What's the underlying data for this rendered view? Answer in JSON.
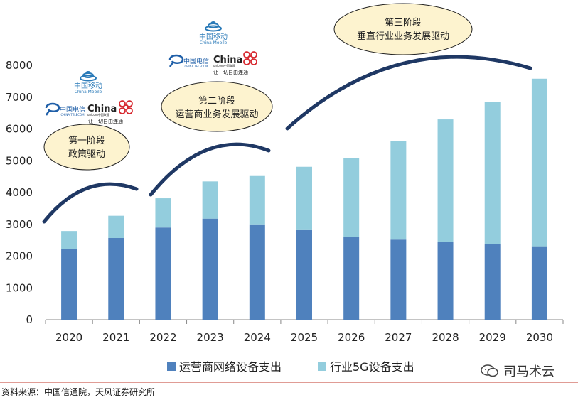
{
  "chart_data": {
    "type": "bar",
    "stacked": true,
    "categories": [
      "2020",
      "2021",
      "2022",
      "2023",
      "2024",
      "2025",
      "2026",
      "2027",
      "2028",
      "2029",
      "2030"
    ],
    "series": [
      {
        "name": "运营商网络设备支出",
        "color": "#4f81bd",
        "values": [
          2230,
          2570,
          2900,
          3180,
          3000,
          2820,
          2610,
          2520,
          2450,
          2380,
          2310
        ]
      },
      {
        "name": "行业5G设备支出",
        "color": "#93cddd",
        "values": [
          560,
          700,
          920,
          1170,
          1520,
          1990,
          2470,
          3100,
          3850,
          4480,
          5270
        ]
      }
    ],
    "ylim": [
      0,
      8000
    ],
    "yticks": [
      0,
      1000,
      2000,
      3000,
      4000,
      5000,
      6000,
      7000,
      8000
    ],
    "grid": false,
    "legend": "bottom",
    "annotations": [
      {
        "label": "stage1",
        "lines": [
          "第一阶段",
          "政策驱动"
        ]
      },
      {
        "label": "stage2",
        "lines": [
          "第二阶段",
          "运营商业务发展驱动"
        ]
      },
      {
        "label": "stage3",
        "lines": [
          "第三阶段",
          "垂直行业业务发展驱动"
        ]
      }
    ]
  },
  "logos": {
    "china_mobile": {
      "cn": "中国移动",
      "en": "China Mobile"
    },
    "china_telecom": {
      "cn": "中国电信",
      "en": "CHINA TELECOM"
    },
    "china_unicom": {
      "en": "China",
      "sub": "unicom中国联通",
      "slogan": "让一切自由连通"
    }
  },
  "source": "资料来源：中国信通院，天风证券研究所",
  "watermark": "司马术云"
}
